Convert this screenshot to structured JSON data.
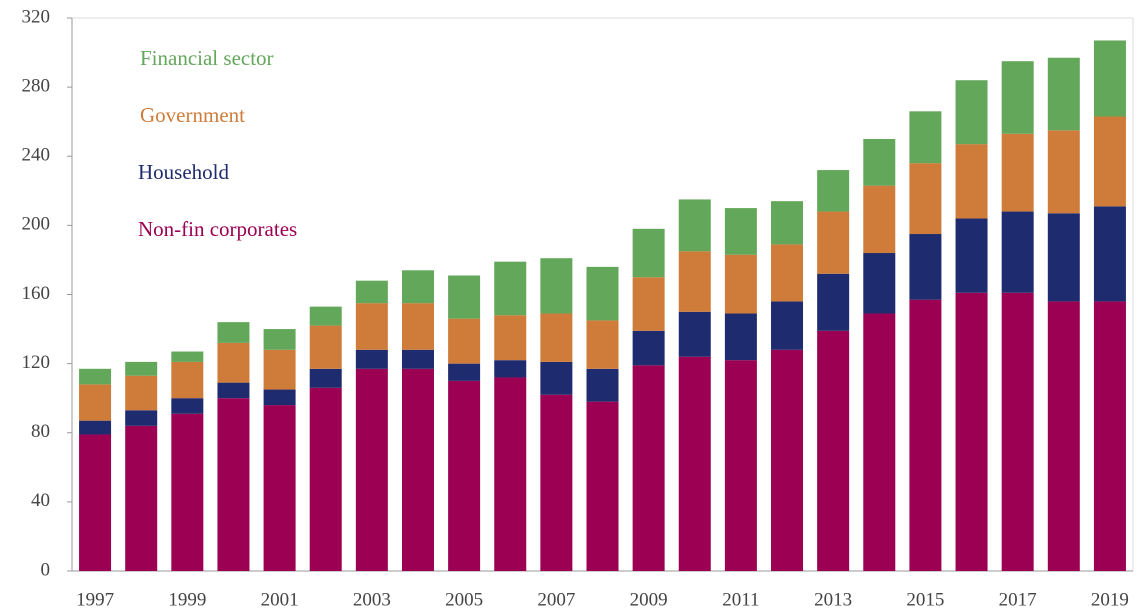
{
  "chart_data": {
    "type": "stacked_bar",
    "categories": [
      "1997",
      null,
      "1999",
      null,
      "2001",
      null,
      "2003",
      null,
      "2005",
      null,
      "2007",
      null,
      "2009",
      null,
      "2011",
      null,
      "2013",
      null,
      "2015",
      null,
      "2017",
      null,
      "2019"
    ],
    "series": [
      {
        "name": "Non-fin corporates",
        "color": "#9b0052",
        "values": [
          79,
          84,
          91,
          100,
          96,
          106,
          117,
          117,
          110,
          112,
          102,
          98,
          119,
          124,
          122,
          128,
          139,
          149,
          157,
          161,
          161,
          156,
          156
        ]
      },
      {
        "name": "Household",
        "color": "#1f2b6f",
        "values": [
          8,
          9,
          9,
          9,
          9,
          11,
          11,
          11,
          10,
          10,
          19,
          19,
          20,
          26,
          27,
          28,
          33,
          35,
          38,
          43,
          47,
          51,
          55
        ]
      },
      {
        "name": "Government",
        "color": "#cf7c3a",
        "values": [
          21,
          20,
          21,
          23,
          23,
          25,
          27,
          27,
          26,
          26,
          28,
          28,
          31,
          35,
          34,
          33,
          36,
          39,
          41,
          43,
          45,
          48,
          52
        ]
      },
      {
        "name": "Financial sector",
        "color": "#63a75a",
        "values": [
          9,
          8,
          6,
          12,
          12,
          11,
          13,
          19,
          25,
          31,
          32,
          31,
          28,
          30,
          27,
          25,
          24,
          27,
          30,
          37,
          42,
          42,
          44
        ]
      }
    ],
    "ylim": [
      0,
      320
    ],
    "yticks": [
      0,
      40,
      80,
      120,
      160,
      200,
      240,
      280,
      320
    ],
    "legend": "upper left"
  }
}
